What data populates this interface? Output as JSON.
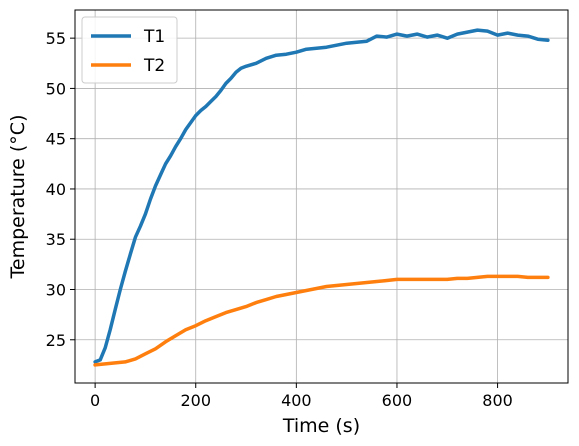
{
  "chart_data": {
    "type": "line",
    "xlabel": "Time (s)",
    "ylabel": "Temperature (°C)",
    "xlim": [
      -40,
      940
    ],
    "ylim": [
      20.7,
      57.8
    ],
    "xticks": [
      0,
      200,
      400,
      600,
      800
    ],
    "yticks": [
      25,
      30,
      35,
      40,
      45,
      50,
      55
    ],
    "grid": true,
    "legend_position": "top-left",
    "series": [
      {
        "name": "T1",
        "color": "#1f77b4",
        "x": [
          0,
          10,
          20,
          30,
          40,
          50,
          60,
          70,
          80,
          90,
          100,
          110,
          120,
          130,
          140,
          150,
          160,
          170,
          180,
          190,
          200,
          210,
          220,
          230,
          240,
          250,
          260,
          270,
          280,
          290,
          300,
          320,
          340,
          360,
          380,
          400,
          420,
          440,
          460,
          480,
          500,
          520,
          540,
          560,
          580,
          600,
          620,
          640,
          660,
          680,
          700,
          720,
          740,
          760,
          780,
          800,
          820,
          840,
          860,
          880,
          900
        ],
        "y": [
          22.8,
          23.0,
          24.2,
          26.0,
          28.0,
          30.0,
          31.8,
          33.5,
          35.2,
          36.3,
          37.5,
          39.0,
          40.3,
          41.4,
          42.5,
          43.3,
          44.2,
          45.0,
          45.9,
          46.6,
          47.3,
          47.8,
          48.2,
          48.7,
          49.2,
          49.8,
          50.5,
          51.0,
          51.6,
          52.0,
          52.2,
          52.5,
          53.0,
          53.3,
          53.4,
          53.6,
          53.9,
          54.0,
          54.1,
          54.3,
          54.5,
          54.6,
          54.7,
          55.2,
          55.1,
          55.4,
          55.2,
          55.4,
          55.1,
          55.3,
          55.0,
          55.4,
          55.6,
          55.8,
          55.7,
          55.3,
          55.5,
          55.3,
          55.2,
          54.9,
          54.8
        ]
      },
      {
        "name": "T2",
        "color": "#ff7f0e",
        "x": [
          0,
          20,
          40,
          60,
          80,
          100,
          120,
          140,
          160,
          180,
          200,
          220,
          240,
          260,
          280,
          300,
          320,
          340,
          360,
          380,
          400,
          420,
          440,
          460,
          480,
          500,
          520,
          540,
          560,
          580,
          600,
          620,
          640,
          660,
          680,
          700,
          720,
          740,
          760,
          780,
          800,
          820,
          840,
          860,
          880,
          900
        ],
        "y": [
          22.5,
          22.6,
          22.7,
          22.8,
          23.1,
          23.6,
          24.1,
          24.8,
          25.4,
          26.0,
          26.4,
          26.9,
          27.3,
          27.7,
          28.0,
          28.3,
          28.7,
          29.0,
          29.3,
          29.5,
          29.7,
          29.9,
          30.1,
          30.3,
          30.4,
          30.5,
          30.6,
          30.7,
          30.8,
          30.9,
          31.0,
          31.0,
          31.0,
          31.0,
          31.0,
          31.0,
          31.1,
          31.1,
          31.2,
          31.3,
          31.3,
          31.3,
          31.3,
          31.2,
          31.2,
          31.2
        ]
      }
    ]
  }
}
